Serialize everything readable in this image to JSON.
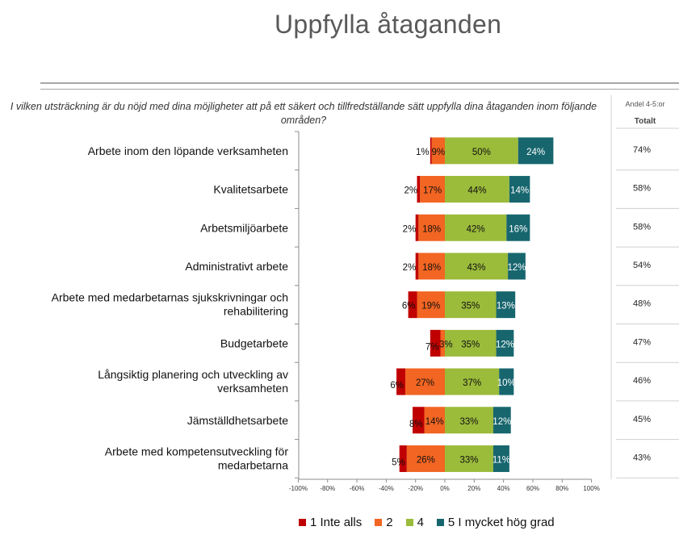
{
  "title": "Uppfylla åtaganden",
  "question": "I vilken utsträckning är du nöjd med dina möjligheter att på ett säkert och tillfredställande sätt uppfylla dina åtaganden inom följande områden?",
  "side_panel": {
    "header": "Andel 4-5:or",
    "subheader": "Totalt",
    "values": [
      "74%",
      "58%",
      "58%",
      "54%",
      "48%",
      "47%",
      "46%",
      "45%",
      "43%"
    ]
  },
  "colors": {
    "1 Inte alls": "#c00000",
    "2": "#f26522",
    "4": "#9bbb3b",
    "5 I mycket hög grad": "#17666e"
  },
  "chart_data": {
    "type": "bar",
    "orientation": "horizontal",
    "stacked": "diverging",
    "title": "",
    "xlabel": "",
    "ylabel": "",
    "xlim": [
      -100,
      100
    ],
    "xticks": [
      "-100%",
      "-80%",
      "-60%",
      "-40%",
      "-20%",
      "0%",
      "20%",
      "40%",
      "60%",
      "80%",
      "100%"
    ],
    "categories": [
      [
        "Arbete inom den löpande verksamheten"
      ],
      [
        "Kvalitetsarbete"
      ],
      [
        "Arbetsmiljöarbete"
      ],
      [
        "Administrativt arbete"
      ],
      [
        "Arbete med medarbetarnas sjukskrivningar och",
        "rehabilitering"
      ],
      [
        "Budgetarbete"
      ],
      [
        "Långsiktig planering och utveckling av",
        "verksamheten"
      ],
      [
        "Jämställdhetsarbete"
      ],
      [
        "Arbete med kompetensutveckling för",
        "medarbetarna"
      ]
    ],
    "series": [
      {
        "name": "1 Inte alls",
        "values": [
          1,
          2,
          2,
          2,
          6,
          7,
          6,
          8,
          5
        ]
      },
      {
        "name": "2",
        "values": [
          9,
          17,
          18,
          18,
          19,
          3,
          27,
          14,
          26
        ]
      },
      {
        "name": "4",
        "values": [
          50,
          44,
          42,
          43,
          35,
          35,
          37,
          33,
          33
        ]
      },
      {
        "name": "5 I mycket hög grad",
        "values": [
          24,
          14,
          16,
          12,
          13,
          12,
          10,
          12,
          11
        ]
      }
    ],
    "grid": false,
    "legend": "bottom"
  }
}
